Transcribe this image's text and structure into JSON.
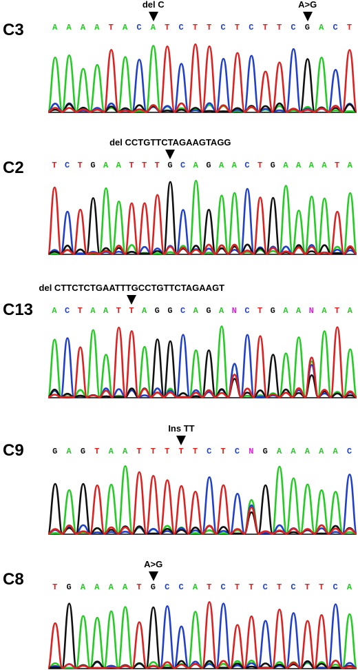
{
  "colors": {
    "A": "#22cc22",
    "C": "#2040cc",
    "G": "#111111",
    "T": "#dd2020",
    "N": "#dd22dd"
  },
  "panels": [
    {
      "label": "C3",
      "sequence": "AAAATACATCTTCTCTTCGACT",
      "mutations": [
        {
          "text": "del C",
          "position": 7
        },
        {
          "text": "A>G",
          "position": 18
        }
      ]
    },
    {
      "label": "C2",
      "sequence": "TCTGAATTTGCAGAACTGAAAATA",
      "mutations": [
        {
          "text": "del CCTGTTCTAGAAGTAGG",
          "position": 9
        }
      ]
    },
    {
      "label": "C13",
      "sequence": "ACTAATTAGGCAGANCTGAANATA",
      "mutations": [
        {
          "text": "del CTTCTCTGAATTTGCCTGTTCTAGAAGT",
          "position": 6
        }
      ]
    },
    {
      "label": "C9",
      "sequence": "GAGTAATTTTTCTCNGAAAAAC",
      "mutations": [
        {
          "text": "Ins TT",
          "position": 9
        }
      ]
    },
    {
      "label": "C8",
      "sequence": "TGAAAATGCCATCTTCTCTTCA",
      "mutations": [
        {
          "text": "A>G",
          "position": 7
        }
      ]
    }
  ]
}
